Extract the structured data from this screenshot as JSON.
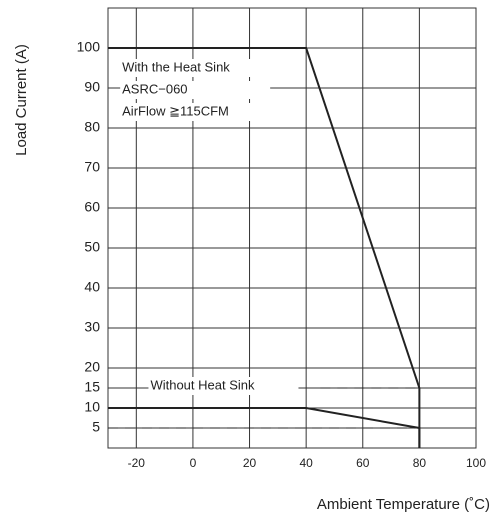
{
  "chart_data": {
    "type": "line",
    "xlabel": "Ambient Temperature (˚C)",
    "ylabel": "Load  Current (A)",
    "xlim": [
      -30,
      100
    ],
    "ylim": [
      0,
      110
    ],
    "xticks": [
      -20,
      0,
      20,
      40,
      60,
      80,
      100
    ],
    "yticks": [
      5,
      10,
      15,
      20,
      30,
      40,
      50,
      60,
      70,
      80,
      90,
      100
    ],
    "grid": true,
    "series": [
      {
        "color": "#222222",
        "dash": false,
        "x": [
          -30,
          40,
          80,
          80
        ],
        "values": [
          100,
          100,
          15,
          0
        ]
      },
      {
        "color": "#222222",
        "dash": false,
        "x": [
          -30,
          40,
          80,
          80
        ],
        "values": [
          10,
          10,
          5,
          0
        ]
      },
      {
        "color": "#222222",
        "dash": true,
        "x": [
          45,
          80
        ],
        "values": [
          15,
          15
        ]
      },
      {
        "color": "#222222",
        "dash": true,
        "x": [
          -30,
          80
        ],
        "values": [
          5,
          5
        ]
      }
    ],
    "annotations": [
      {
        "text": "With the Heat Sink",
        "x": -25,
        "y": 95
      },
      {
        "text": "ASRC−060",
        "x": -25,
        "y": 89.5
      },
      {
        "text": "AirFlow ≧115CFM",
        "x": -25,
        "y": 84
      },
      {
        "text": "Without Heat Sink",
        "x": -15,
        "y": 15.5
      }
    ]
  }
}
